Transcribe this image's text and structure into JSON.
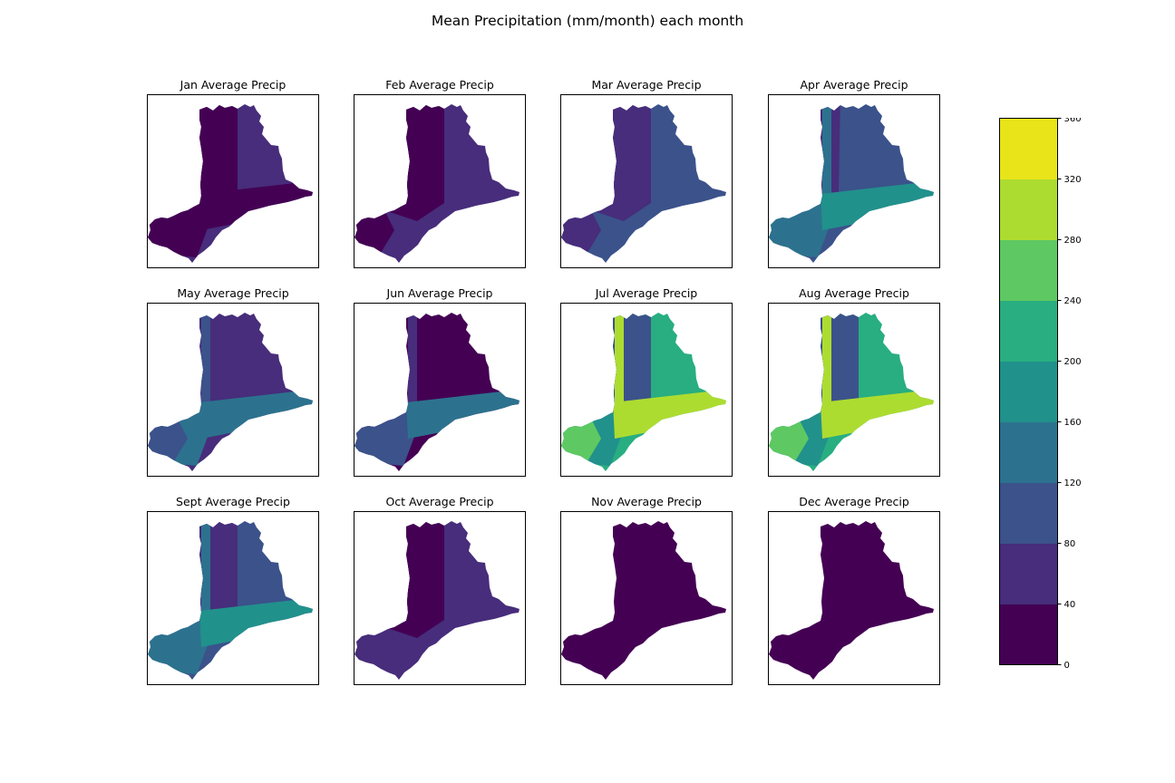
{
  "chart_data": {
    "type": "heatmap",
    "title": "Mean Precipitation (mm/month) each month",
    "subplots": [
      {
        "title": "Jan Average Precip",
        "month": "Jan",
        "levels": [
          1,
          0,
          0,
          0,
          0,
          0,
          0
        ]
      },
      {
        "title": "Feb Average Precip",
        "month": "Feb",
        "levels": [
          1,
          0,
          0,
          1,
          1,
          0,
          1
        ]
      },
      {
        "title": "Mar Average Precip",
        "month": "Mar",
        "levels": [
          2,
          1,
          1,
          2,
          2,
          1,
          2
        ]
      },
      {
        "title": "Apr Average Precip",
        "month": "Apr",
        "levels": [
          2,
          2,
          1,
          3,
          3,
          2,
          4
        ]
      },
      {
        "title": "May Average Precip",
        "month": "May",
        "levels": [
          1,
          1,
          1,
          3,
          2,
          2,
          3
        ]
      },
      {
        "title": "Jun Average Precip",
        "month": "Jun",
        "levels": [
          0,
          0,
          0,
          2,
          1,
          2,
          3
        ]
      },
      {
        "title": "Jul Average Precip",
        "month": "Jul",
        "levels": [
          5,
          2,
          2,
          4,
          7,
          6,
          7
        ]
      },
      {
        "title": "Aug Average Precip",
        "month": "Aug",
        "levels": [
          5,
          2,
          2,
          4,
          7,
          6,
          7
        ]
      },
      {
        "title": "Sept Average Precip",
        "month": "Sept",
        "levels": [
          2,
          1,
          1,
          3,
          3,
          2,
          4
        ]
      },
      {
        "title": "Oct Average Precip",
        "month": "Oct",
        "levels": [
          1,
          0,
          0,
          1,
          1,
          1,
          1
        ]
      },
      {
        "title": "Nov Average Precip",
        "month": "Nov",
        "levels": [
          0,
          0,
          0,
          0,
          0,
          0,
          0
        ]
      },
      {
        "title": "Dec Average Precip",
        "month": "Dec",
        "levels": [
          0,
          0,
          0,
          0,
          0,
          0,
          0
        ]
      }
    ],
    "colorbar": {
      "ticks": [
        "0",
        "40",
        "80",
        "120",
        "160",
        "200",
        "240",
        "280",
        "320",
        "360"
      ],
      "colors": [
        "#440154",
        "#472d7b",
        "#3b528b",
        "#2c728e",
        "#21918c",
        "#28ae80",
        "#5ec962",
        "#addc30",
        "#e8e419"
      ],
      "range": [
        0,
        360
      ],
      "placement": "right"
    },
    "xticks": "off",
    "yticks": "off"
  }
}
